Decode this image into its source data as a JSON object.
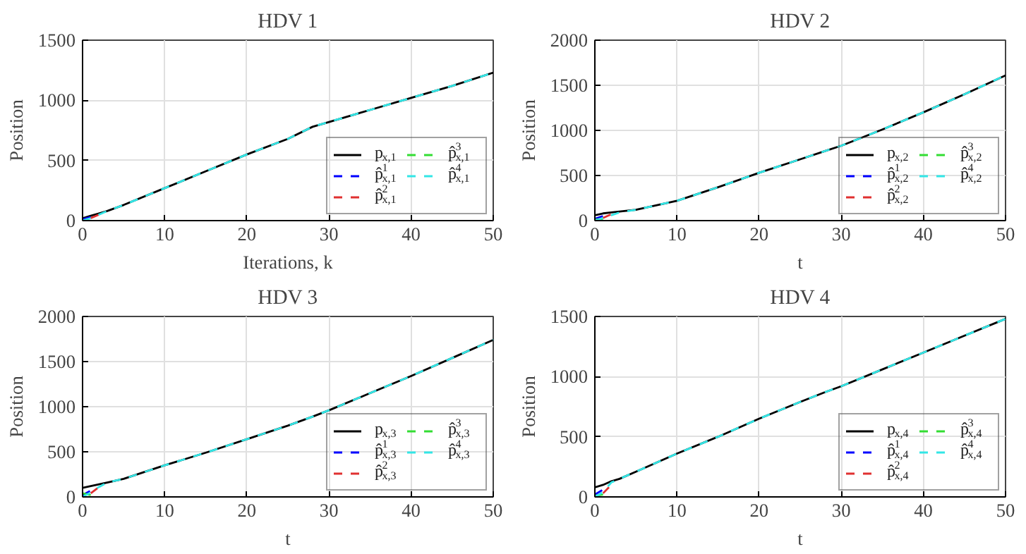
{
  "chart_data": [
    {
      "type": "line",
      "title": "HDV 1",
      "xlabel": "Iterations, k",
      "ylabel": "Position",
      "xlim": [
        0,
        50
      ],
      "ylim": [
        0,
        1500
      ],
      "xticks": [
        0,
        10,
        20,
        30,
        40,
        50
      ],
      "yticks": [
        0,
        500,
        1000,
        1500
      ],
      "grid": true,
      "legend": "bottom right",
      "x": [
        0,
        1,
        2,
        3,
        5,
        10,
        15,
        20,
        25,
        28,
        30,
        35,
        40,
        45,
        50
      ],
      "series": [
        {
          "name": "p$_{x,1}$",
          "color": "#000000",
          "line_style": "solid",
          "values": [
            20,
            40,
            60,
            80,
            130,
            270,
            410,
            550,
            680,
            780,
            820,
            920,
            1020,
            1120,
            1230
          ]
        },
        {
          "name": "p̂$^{1}$$_{x,1}$",
          "color": "#0000ff",
          "line_style": "dashed",
          "values": [
            10,
            30,
            null,
            null,
            null,
            null,
            null,
            null,
            null,
            null,
            null,
            null,
            null,
            null,
            null
          ]
        },
        {
          "name": "p̂$^{2}$$_{x,1}$",
          "color": "#e03030",
          "line_style": "dashed",
          "values": [
            null,
            20,
            50,
            null,
            null,
            null,
            null,
            null,
            null,
            null,
            null,
            null,
            null,
            null,
            null
          ]
        },
        {
          "name": "p̂$^{3}$$_{x,1}$",
          "color": "#33dd33",
          "line_style": "dashed",
          "values": [
            null,
            null,
            null,
            null,
            null,
            null,
            null,
            null,
            null,
            null,
            null,
            null,
            null,
            null,
            null
          ]
        },
        {
          "name": "p̂$^{4}$$_{x,1}$",
          "color": "#33e6e6",
          "line_style": "dashed",
          "values": [
            0,
            20,
            50,
            80,
            130,
            270,
            410,
            550,
            680,
            780,
            820,
            920,
            1020,
            1120,
            1230
          ]
        }
      ]
    },
    {
      "type": "line",
      "title": "HDV 2",
      "xlabel": "t",
      "ylabel": "Position",
      "xlim": [
        0,
        50
      ],
      "ylim": [
        0,
        2000
      ],
      "xticks": [
        0,
        10,
        20,
        30,
        40,
        50
      ],
      "yticks": [
        0,
        500,
        1000,
        1500,
        2000
      ],
      "grid": true,
      "legend": "bottom right",
      "x": [
        0,
        1,
        2,
        3,
        5,
        10,
        15,
        20,
        25,
        28,
        30,
        35,
        40,
        45,
        50
      ],
      "series": [
        {
          "name": "p$_{x,2}$",
          "color": "#000000",
          "line_style": "solid",
          "values": [
            60,
            80,
            90,
            100,
            120,
            220,
            370,
            530,
            680,
            770,
            830,
            1010,
            1200,
            1400,
            1610
          ]
        },
        {
          "name": "p̂$^{1}$$_{x,2}$",
          "color": "#0000ff",
          "line_style": "dashed",
          "values": [
            20,
            50,
            null,
            null,
            null,
            null,
            null,
            null,
            null,
            null,
            null,
            null,
            null,
            null,
            null
          ]
        },
        {
          "name": "p̂$^{2}$$_{x,2}$",
          "color": "#e03030",
          "line_style": "dashed",
          "values": [
            null,
            30,
            70,
            null,
            null,
            null,
            null,
            null,
            null,
            null,
            null,
            null,
            null,
            null,
            null
          ]
        },
        {
          "name": "p̂$^{3}$$_{x,2}$",
          "color": "#33dd33",
          "line_style": "dashed",
          "values": [
            10,
            20,
            null,
            null,
            null,
            null,
            null,
            null,
            null,
            null,
            null,
            null,
            null,
            null,
            null
          ]
        },
        {
          "name": "p̂$^{4}$$_{x,2}$",
          "color": "#33e6e6",
          "line_style": "dashed",
          "values": [
            0,
            30,
            60,
            90,
            120,
            220,
            370,
            530,
            680,
            770,
            830,
            1010,
            1200,
            1400,
            1610
          ]
        }
      ]
    },
    {
      "type": "line",
      "title": "HDV 3",
      "xlabel": "t",
      "ylabel": "Position",
      "xlim": [
        0,
        50
      ],
      "ylim": [
        0,
        2000
      ],
      "xticks": [
        0,
        10,
        20,
        30,
        40,
        50
      ],
      "yticks": [
        0,
        500,
        1000,
        1500,
        2000
      ],
      "grid": true,
      "legend": "bottom right",
      "x": [
        0,
        1,
        2,
        3,
        5,
        10,
        15,
        20,
        25,
        28,
        30,
        35,
        40,
        45,
        50
      ],
      "series": [
        {
          "name": "p$_{x,3}$",
          "color": "#000000",
          "line_style": "solid",
          "values": [
            100,
            120,
            140,
            160,
            200,
            350,
            490,
            640,
            790,
            890,
            960,
            1150,
            1340,
            1540,
            1740
          ]
        },
        {
          "name": "p̂$^{1}$$_{x,3}$",
          "color": "#0000ff",
          "line_style": "dashed",
          "values": [
            20,
            70,
            null,
            null,
            null,
            null,
            null,
            null,
            null,
            null,
            null,
            null,
            null,
            null,
            null
          ]
        },
        {
          "name": "p̂$^{2}$$_{x,3}$",
          "color": "#e03030",
          "line_style": "dashed",
          "values": [
            null,
            40,
            110,
            null,
            null,
            null,
            null,
            null,
            null,
            null,
            null,
            null,
            null,
            null,
            null
          ]
        },
        {
          "name": "p̂$^{3}$$_{x,3}$",
          "color": "#33dd33",
          "line_style": "dashed",
          "values": [
            40,
            20,
            null,
            null,
            null,
            null,
            null,
            null,
            null,
            null,
            null,
            null,
            null,
            null,
            null
          ]
        },
        {
          "name": "p̂$^{4}$$_{x,3}$",
          "color": "#33e6e6",
          "line_style": "dashed",
          "values": [
            0,
            50,
            110,
            160,
            200,
            350,
            490,
            640,
            790,
            890,
            960,
            1150,
            1340,
            1540,
            1740
          ]
        }
      ]
    },
    {
      "type": "line",
      "title": "HDV 4",
      "xlabel": "t",
      "ylabel": "Position",
      "xlim": [
        0,
        50
      ],
      "ylim": [
        0,
        1500
      ],
      "xticks": [
        0,
        10,
        20,
        30,
        40,
        50
      ],
      "yticks": [
        0,
        500,
        1000,
        1500
      ],
      "grid": true,
      "legend": "bottom right",
      "x": [
        0,
        1,
        2,
        3,
        5,
        10,
        15,
        20,
        25,
        28,
        30,
        35,
        40,
        45,
        50
      ],
      "series": [
        {
          "name": "p$_{x,4}$",
          "color": "#000000",
          "line_style": "solid",
          "values": [
            80,
            100,
            130,
            150,
            210,
            360,
            500,
            650,
            790,
            870,
            920,
            1060,
            1200,
            1340,
            1480
          ]
        },
        {
          "name": "p̂$^{1}$$_{x,4}$",
          "color": "#0000ff",
          "line_style": "dashed",
          "values": [
            20,
            60,
            null,
            null,
            null,
            null,
            null,
            null,
            null,
            null,
            null,
            null,
            null,
            null,
            null
          ]
        },
        {
          "name": "p̂$^{2}$$_{x,4}$",
          "color": "#e03030",
          "line_style": "dashed",
          "values": [
            null,
            30,
            100,
            null,
            null,
            null,
            null,
            null,
            null,
            null,
            null,
            null,
            null,
            null,
            null
          ]
        },
        {
          "name": "p̂$^{3}$$_{x,4}$",
          "color": "#33dd33",
          "line_style": "dashed",
          "values": [
            10,
            20,
            null,
            null,
            null,
            null,
            null,
            null,
            null,
            null,
            null,
            null,
            null,
            null,
            null
          ]
        },
        {
          "name": "p̂$^{4}$$_{x,4}$",
          "color": "#33e6e6",
          "line_style": "dashed",
          "values": [
            0,
            40,
            120,
            150,
            210,
            360,
            500,
            650,
            790,
            870,
            920,
            1060,
            1200,
            1340,
            1480
          ]
        }
      ]
    }
  ]
}
